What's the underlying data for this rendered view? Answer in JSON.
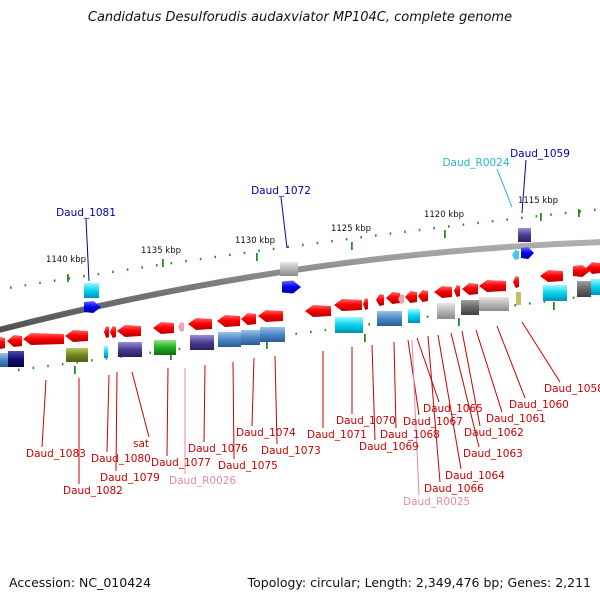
{
  "title": "Candidatus Desulforudis audaxviator MP104C, complete genome",
  "footer": {
    "accession": "Accession: NC_010424",
    "topology": "Topology: circular; Length: 2,349,476 bp; Genes: 2,211"
  },
  "scale_labels": [
    "1115 kbp",
    "1120 kbp",
    "1125 kbp",
    "1130 kbp",
    "1135 kbp",
    "1140 kbp"
  ],
  "colors": {
    "red_label": "#cc0000",
    "pink_label": "#e88aaa",
    "navy_label": "#0000aa",
    "cyan_label": "#22b8cc",
    "backbone": "#808080",
    "tick": "#2a8a2a"
  },
  "gene_labels_top": [
    "Daud_1081",
    "Daud_1072",
    "Daud_R0024",
    "Daud_1059"
  ],
  "gene_labels_bottom": [
    "Daud_1083",
    "Daud_1082",
    "Daud_1080",
    "Daud_1079",
    "sat",
    "Daud_1077",
    "Daud_R0026",
    "Daud_1076",
    "Daud_1075",
    "Daud_1074",
    "Daud_1073",
    "Daud_1071",
    "Daud_1070",
    "Daud_1069",
    "Daud_1068",
    "Daud_1067",
    "Daud_1065",
    "Daud_R0025",
    "Daud_1066",
    "Daud_1064",
    "Daud_1063",
    "Daud_1062",
    "Daud_1061",
    "Daud_1060",
    "Daud_1058"
  ]
}
